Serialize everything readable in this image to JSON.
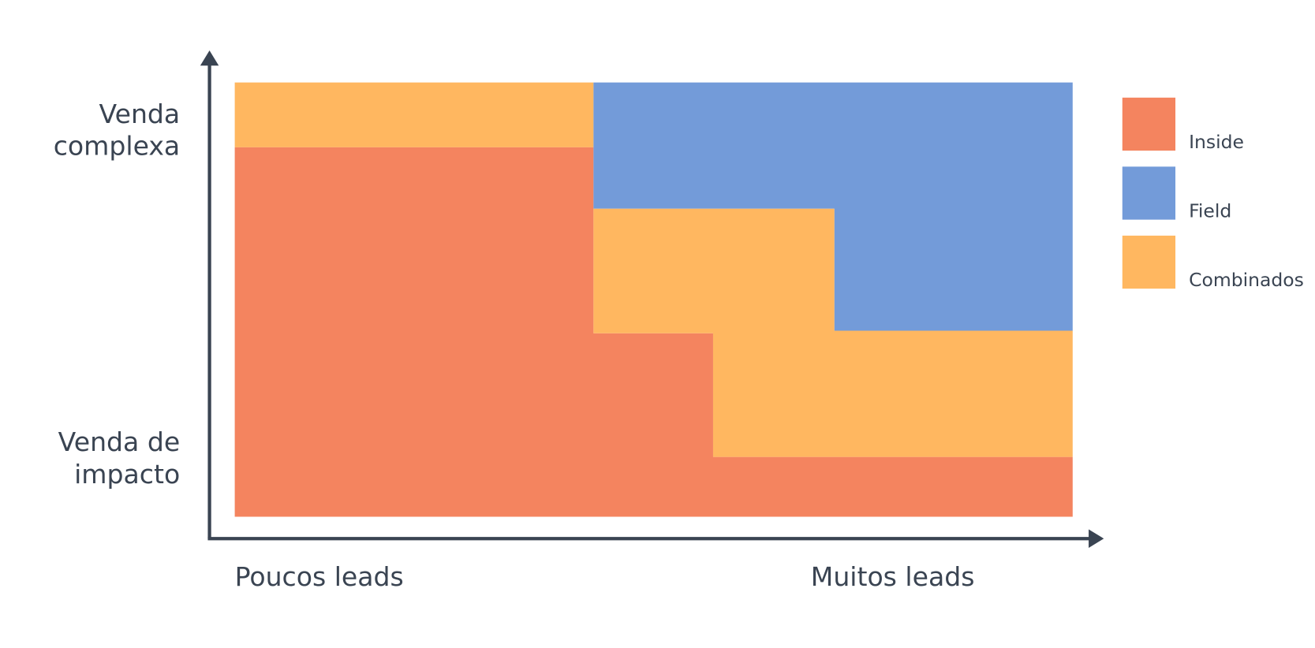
{
  "legend": [
    {
      "label": "Inside",
      "color": "#f4845f"
    },
    {
      "label": "Field",
      "color": "#739bd9"
    },
    {
      "label": "Combinados",
      "color": "#ffb760"
    }
  ],
  "y_axis": {
    "top_label": [
      "Venda",
      "complexa"
    ],
    "bottom_label": [
      "Venda de",
      "impacto"
    ]
  },
  "x_axis": {
    "left_label": "Poucos leads",
    "right_label": "Muitos leads"
  }
}
